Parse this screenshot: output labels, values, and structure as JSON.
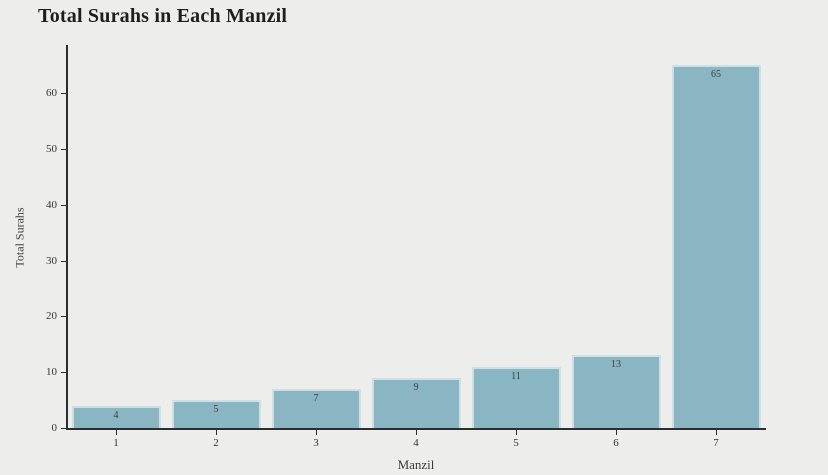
{
  "chart_data": {
    "type": "bar",
    "title": "Total Surahs in Each Manzil",
    "xlabel": "Manzil",
    "ylabel": "Total Surahs",
    "categories": [
      "1",
      "2",
      "3",
      "4",
      "5",
      "6",
      "7"
    ],
    "values": [
      4,
      5,
      7,
      9,
      11,
      13,
      65
    ],
    "yticks": [
      0,
      10,
      20,
      30,
      40,
      50,
      60
    ],
    "ylim": [
      0,
      68.6
    ],
    "grid": "off",
    "legend": "none",
    "bar_labels_position": "inside-top",
    "colors": {
      "background": "#edeeec",
      "bar_fill": "#8ab6c4",
      "bar_border": "#cbdfe4",
      "axis": "#2e2e2e",
      "title_text": "#1e1e1e",
      "tick_text": "#333333"
    }
  }
}
